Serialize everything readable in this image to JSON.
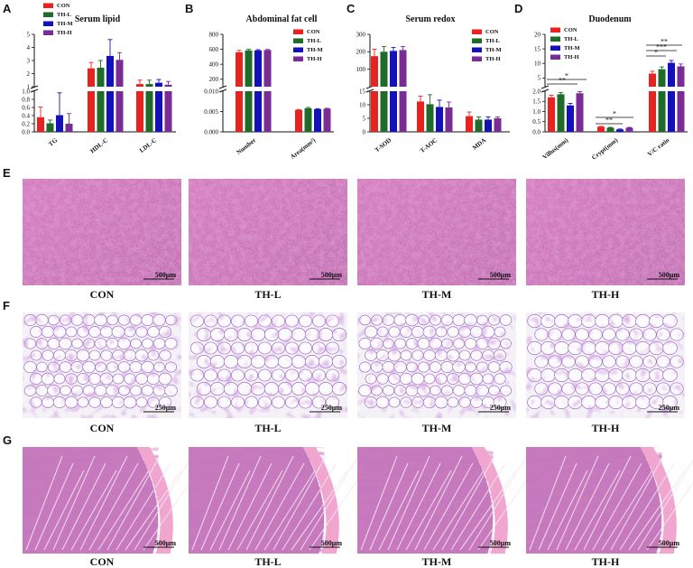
{
  "colors": {
    "CON": "#e8231f",
    "TH-L": "#1e6b2a",
    "TH-M": "#1411b8",
    "TH-H": "#7a2c96"
  },
  "legend": [
    "CON",
    "TH-L",
    "TH-M",
    "TH-H"
  ],
  "panels": {
    "A": {
      "letter": "A",
      "title": "Serum lipid"
    },
    "B": {
      "letter": "B",
      "title": "Abdominal fat cell"
    },
    "C": {
      "letter": "C",
      "title": "Serum redox"
    },
    "D": {
      "letter": "D",
      "title": "Duodenum"
    },
    "E": {
      "letter": "E"
    },
    "F": {
      "letter": "F"
    },
    "G": {
      "letter": "G"
    }
  },
  "chart_data": [
    {
      "type": "bar",
      "panel": "A",
      "title": "Serum lipid",
      "categories": [
        "TG",
        "HDL-C",
        "LDL-C"
      ],
      "axis_break": true,
      "lower_range": [
        0,
        1.0
      ],
      "lower_ticks": [
        "0.0",
        "0.2",
        "0.4",
        "0.6",
        "0.8",
        "1.0"
      ],
      "upper_range": [
        1,
        5
      ],
      "upper_ticks": [
        "1",
        "2",
        "3",
        "4",
        "5"
      ],
      "series": [
        {
          "name": "CON",
          "values": [
            0.36,
            2.4,
            1.2
          ],
          "errors": [
            0.25,
            0.45,
            0.3
          ]
        },
        {
          "name": "TH-L",
          "values": [
            0.21,
            2.45,
            1.2
          ],
          "errors": [
            0.08,
            0.55,
            0.3
          ]
        },
        {
          "name": "TH-M",
          "values": [
            0.41,
            3.35,
            1.3
          ],
          "errors": [
            0.55,
            1.25,
            0.25
          ]
        },
        {
          "name": "TH-H",
          "values": [
            0.2,
            3.05,
            1.15
          ],
          "errors": [
            0.25,
            0.55,
            0.25
          ]
        }
      ]
    },
    {
      "type": "bar",
      "panel": "B",
      "title": "Abdominal fat cell",
      "categories": [
        "Number",
        "Area(mm²)"
      ],
      "axis_break": true,
      "lower_range": [
        0,
        0.01
      ],
      "lower_ticks": [
        "0.000",
        "0.005",
        "0.010"
      ],
      "upper_range": [
        100,
        800
      ],
      "upper_ticks": [
        "200",
        "400",
        "600",
        "800"
      ],
      "series": [
        {
          "name": "CON",
          "values": [
            560,
            0.0054
          ],
          "errors": [
            25,
            0.0001
          ]
        },
        {
          "name": "TH-L",
          "values": [
            585,
            0.0058
          ],
          "errors": [
            15,
            0.0002
          ]
        },
        {
          "name": "TH-M",
          "values": [
            585,
            0.0056
          ],
          "errors": [
            10,
            0.0001
          ]
        },
        {
          "name": "TH-H",
          "values": [
            590,
            0.0057
          ],
          "errors": [
            8,
            0.0001
          ]
        }
      ]
    },
    {
      "type": "bar",
      "panel": "C",
      "title": "Serum redox",
      "categories": [
        "T-SOD",
        "T-AOC",
        "MDA"
      ],
      "axis_break": true,
      "lower_range": [
        0,
        15
      ],
      "lower_ticks": [
        "0",
        "5",
        "10",
        "15"
      ],
      "upper_range": [
        0,
        300
      ],
      "upper_ticks": [
        "100",
        "200",
        "300"
      ],
      "series": [
        {
          "name": "CON",
          "values": [
            175,
            11.2,
            5.8
          ],
          "errors": [
            40,
            2,
            1.5
          ]
        },
        {
          "name": "TH-L",
          "values": [
            200,
            10.2,
            4.5
          ],
          "errors": [
            30,
            3.5,
            1
          ]
        },
        {
          "name": "TH-M",
          "values": [
            205,
            9.2,
            4.5
          ],
          "errors": [
            20,
            2.5,
            1
          ]
        },
        {
          "name": "TH-H",
          "values": [
            210,
            9.0,
            5.0
          ],
          "errors": [
            20,
            2,
            0.5
          ]
        }
      ]
    },
    {
      "type": "bar",
      "panel": "D",
      "title": "Duodenum",
      "categories": [
        "Villus(mm)",
        "Crypt(mm)",
        "V/C ratio"
      ],
      "axis_break": true,
      "lower_range": [
        0,
        2.0
      ],
      "lower_ticks": [
        "0.0",
        "0.5",
        "1.0",
        "1.5",
        "2.0"
      ],
      "upper_range": [
        2,
        20
      ],
      "upper_ticks": [
        "5",
        "10",
        "15",
        "20"
      ],
      "series": [
        {
          "name": "CON",
          "values": [
            1.7,
            0.25,
            6.5
          ],
          "errors": [
            0.1,
            0.02,
            0.8
          ]
        },
        {
          "name": "TH-L",
          "values": [
            1.85,
            0.2,
            8.0
          ],
          "errors": [
            0.08,
            0.02,
            0.8
          ]
        },
        {
          "name": "TH-M",
          "values": [
            1.3,
            0.12,
            10.2
          ],
          "errors": [
            0.1,
            0.02,
            0.8
          ]
        },
        {
          "name": "TH-H",
          "values": [
            1.9,
            0.2,
            9.0
          ],
          "errors": [
            0.08,
            0.02,
            0.8
          ]
        }
      ],
      "significance": [
        "**",
        "*",
        "**",
        "*",
        "*",
        "***",
        "**"
      ]
    }
  ],
  "micrographs": {
    "E": {
      "scale": "500μm",
      "labels": [
        "CON",
        "TH-L",
        "TH-M",
        "TH-H"
      ]
    },
    "F": {
      "scale": "250μm",
      "labels": [
        "CON",
        "TH-L",
        "TH-M",
        "TH-H"
      ]
    },
    "G": {
      "scale": "500μm",
      "labels": [
        "CON",
        "TH-L",
        "TH-M",
        "TH-H"
      ]
    }
  }
}
